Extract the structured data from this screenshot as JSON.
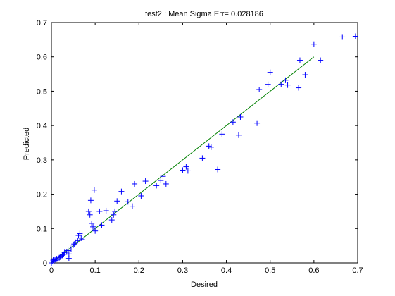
{
  "chart_data": {
    "type": "scatter",
    "title": "test2 :  Mean Sigma Err= 0.028186",
    "xlabel": "Desired",
    "ylabel": "Predicted",
    "xlim": [
      0,
      0.7
    ],
    "ylim": [
      0,
      0.7
    ],
    "xticks": [
      "0",
      "0.1",
      "0.2",
      "0.3",
      "0.4",
      "0.5",
      "0.6",
      "0.7"
    ],
    "yticks": [
      "0",
      "0.1",
      "0.2",
      "0.3",
      "0.4",
      "0.5",
      "0.6",
      "0.7"
    ],
    "grid": false,
    "marker": "+",
    "colors": {
      "points": "#0000ff",
      "fit_line": "#008000",
      "axes": "#000000"
    },
    "fit_line": {
      "x": [
        0.0,
        0.6
      ],
      "y": [
        0.0,
        0.6
      ]
    },
    "points": [
      [
        0.0,
        0.0
      ],
      [
        0.002,
        0.005
      ],
      [
        0.004,
        0.008
      ],
      [
        0.006,
        0.004
      ],
      [
        0.008,
        0.01
      ],
      [
        0.01,
        0.007
      ],
      [
        0.012,
        0.012
      ],
      [
        0.015,
        0.01
      ],
      [
        0.018,
        0.015
      ],
      [
        0.02,
        0.018
      ],
      [
        0.022,
        0.02
      ],
      [
        0.025,
        0.022
      ],
      [
        0.028,
        0.025
      ],
      [
        0.03,
        0.03
      ],
      [
        0.035,
        0.032
      ],
      [
        0.038,
        0.036
      ],
      [
        0.04,
        0.013
      ],
      [
        0.04,
        0.026
      ],
      [
        0.045,
        0.04
      ],
      [
        0.05,
        0.052
      ],
      [
        0.052,
        0.055
      ],
      [
        0.055,
        0.06
      ],
      [
        0.06,
        0.065
      ],
      [
        0.062,
        0.08
      ],
      [
        0.065,
        0.085
      ],
      [
        0.068,
        0.072
      ],
      [
        0.07,
        0.068
      ],
      [
        0.085,
        0.15
      ],
      [
        0.088,
        0.14
      ],
      [
        0.09,
        0.182
      ],
      [
        0.092,
        0.115
      ],
      [
        0.095,
        0.105
      ],
      [
        0.098,
        0.212
      ],
      [
        0.1,
        0.093
      ],
      [
        0.11,
        0.15
      ],
      [
        0.115,
        0.11
      ],
      [
        0.125,
        0.152
      ],
      [
        0.138,
        0.125
      ],
      [
        0.142,
        0.14
      ],
      [
        0.145,
        0.15
      ],
      [
        0.15,
        0.18
      ],
      [
        0.16,
        0.208
      ],
      [
        0.175,
        0.178
      ],
      [
        0.185,
        0.165
      ],
      [
        0.19,
        0.23
      ],
      [
        0.205,
        0.195
      ],
      [
        0.215,
        0.238
      ],
      [
        0.24,
        0.225
      ],
      [
        0.25,
        0.24
      ],
      [
        0.255,
        0.252
      ],
      [
        0.262,
        0.23
      ],
      [
        0.3,
        0.27
      ],
      [
        0.308,
        0.28
      ],
      [
        0.312,
        0.268
      ],
      [
        0.345,
        0.305
      ],
      [
        0.36,
        0.34
      ],
      [
        0.365,
        0.337
      ],
      [
        0.38,
        0.272
      ],
      [
        0.39,
        0.375
      ],
      [
        0.415,
        0.41
      ],
      [
        0.428,
        0.372
      ],
      [
        0.432,
        0.425
      ],
      [
        0.47,
        0.407
      ],
      [
        0.475,
        0.505
      ],
      [
        0.495,
        0.52
      ],
      [
        0.5,
        0.555
      ],
      [
        0.525,
        0.52
      ],
      [
        0.535,
        0.532
      ],
      [
        0.54,
        0.518
      ],
      [
        0.565,
        0.51
      ],
      [
        0.568,
        0.59
      ],
      [
        0.58,
        0.548
      ],
      [
        0.6,
        0.637
      ],
      [
        0.615,
        0.59
      ],
      [
        0.665,
        0.658
      ],
      [
        0.695,
        0.66
      ]
    ]
  }
}
